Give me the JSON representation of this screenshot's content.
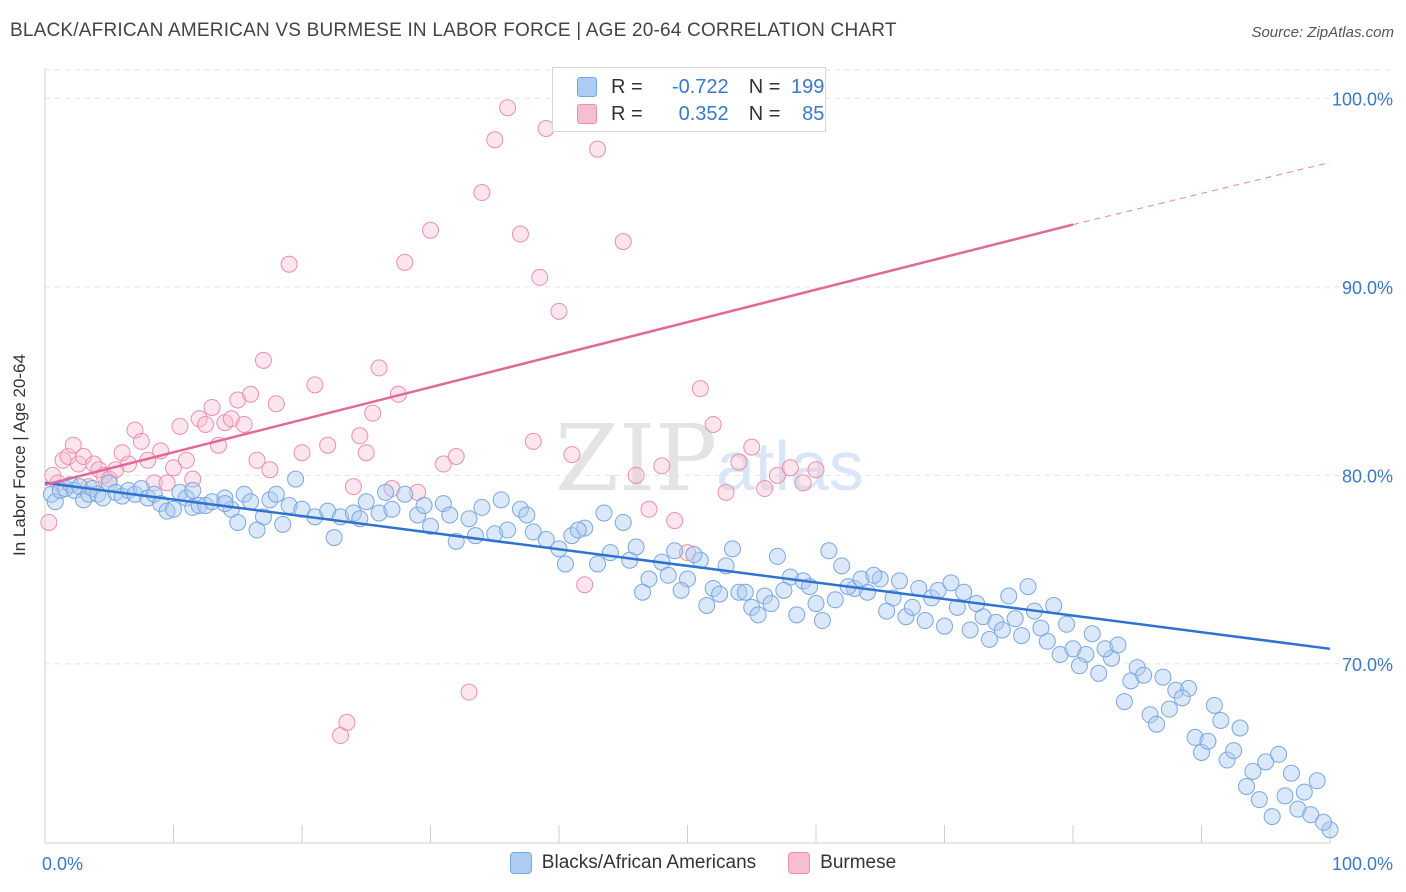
{
  "title": "BLACK/AFRICAN AMERICAN VS BURMESE IN LABOR FORCE | AGE 20-64 CORRELATION CHART",
  "source": "Source: ZipAtlas.com",
  "watermark": {
    "part1": "ZIP",
    "part2": "atlas"
  },
  "legend": {
    "rows": [
      {
        "r_label": "R =",
        "r_value": "-0.722",
        "n_label": "N =",
        "n_value": "199",
        "color": "#aecbf2",
        "border": "#7aa7e0"
      },
      {
        "r_label": "R =",
        "r_value": "0.352",
        "n_label": "N =",
        "n_value": "85",
        "color": "#f7bdd0",
        "border": "#ec8fae"
      }
    ]
  },
  "bottom_legend": [
    {
      "label": "Blacks/African Americans",
      "color": "#aecbf2",
      "border": "#7aa7e0"
    },
    {
      "label": "Burmese",
      "color": "#f7bdd0",
      "border": "#ec8fae"
    }
  ],
  "colors": {
    "blue_fill": "rgba(174,203,242,0.45)",
    "blue_stroke": "#7aa7e0",
    "blue_line": "#2f72cf",
    "pink_fill": "rgba(247,189,208,0.40)",
    "pink_stroke": "#ec8fae",
    "pink_line": "#e0699a",
    "tick_label": "#3a78c9"
  },
  "chart_data": {
    "type": "scatter",
    "title": "BLACK/AFRICAN AMERICAN VS BURMESE IN LABOR FORCE | AGE 20-64 CORRELATION CHART",
    "xlabel": "",
    "ylabel": "In Labor Force | Age 20-64",
    "x_tick_labels": [
      "0.0%",
      "100.0%"
    ],
    "y_tick_labels": [
      "70.0%",
      "80.0%",
      "90.0%",
      "100.0%"
    ],
    "y_ticks": [
      70,
      80,
      90,
      100
    ],
    "xlim": [
      0,
      100
    ],
    "ylim": [
      60.5,
      101.5
    ],
    "grid": true,
    "legend_position": "top-center",
    "series": [
      {
        "name": "Blacks/African Americans",
        "R": -0.722,
        "N": 199,
        "trend": {
          "x": [
            0,
            100
          ],
          "y": [
            79.6,
            70.8
          ]
        },
        "points": [
          [
            0.5,
            79.0
          ],
          [
            0.8,
            78.6
          ],
          [
            1.2,
            79.2
          ],
          [
            1.6,
            79.3
          ],
          [
            2.0,
            79.5
          ],
          [
            2.3,
            79.2
          ],
          [
            2.7,
            79.4
          ],
          [
            3.0,
            78.7
          ],
          [
            3.4,
            79.0
          ],
          [
            3.7,
            79.3
          ],
          [
            4.1,
            79.0
          ],
          [
            4.5,
            78.8
          ],
          [
            5.0,
            79.6
          ],
          [
            5.5,
            79.1
          ],
          [
            6.0,
            78.9
          ],
          [
            6.5,
            79.2
          ],
          [
            7.0,
            79.0
          ],
          [
            7.5,
            79.3
          ],
          [
            8.0,
            78.8
          ],
          [
            8.5,
            79.0
          ],
          [
            9.0,
            78.5
          ],
          [
            9.5,
            78.1
          ],
          [
            10.5,
            79.1
          ],
          [
            11.0,
            78.8
          ],
          [
            11.5,
            78.3
          ],
          [
            12.0,
            78.4
          ],
          [
            12.5,
            78.4
          ],
          [
            13.0,
            78.6
          ],
          [
            14.0,
            78.8
          ],
          [
            14.5,
            78.2
          ],
          [
            15.0,
            77.5
          ],
          [
            15.5,
            79.0
          ],
          [
            16.0,
            78.6
          ],
          [
            17.0,
            77.8
          ],
          [
            17.5,
            78.7
          ],
          [
            18.0,
            79.0
          ],
          [
            18.5,
            77.4
          ],
          [
            19.0,
            78.4
          ],
          [
            19.5,
            79.8
          ],
          [
            20.0,
            78.2
          ],
          [
            21.0,
            77.8
          ],
          [
            22.0,
            78.1
          ],
          [
            23.0,
            77.8
          ],
          [
            24.0,
            78.0
          ],
          [
            25.0,
            78.6
          ],
          [
            26.0,
            78.0
          ],
          [
            27.0,
            78.2
          ],
          [
            28.0,
            79.0
          ],
          [
            29.0,
            77.9
          ],
          [
            30.0,
            77.3
          ],
          [
            31.0,
            78.5
          ],
          [
            32.0,
            76.5
          ],
          [
            33.0,
            77.7
          ],
          [
            34.0,
            78.3
          ],
          [
            35.0,
            76.9
          ],
          [
            36.0,
            77.1
          ],
          [
            37.0,
            78.2
          ],
          [
            38.0,
            77.0
          ],
          [
            39.0,
            76.6
          ],
          [
            40.0,
            76.1
          ],
          [
            41.0,
            76.8
          ],
          [
            42.0,
            77.2
          ],
          [
            43.0,
            75.3
          ],
          [
            44.0,
            75.9
          ],
          [
            45.0,
            77.5
          ],
          [
            46.0,
            76.2
          ],
          [
            47.0,
            74.5
          ],
          [
            48.0,
            75.4
          ],
          [
            49.0,
            76.0
          ],
          [
            50.0,
            74.5
          ],
          [
            51.0,
            75.5
          ],
          [
            52.0,
            74.0
          ],
          [
            53.0,
            75.2
          ],
          [
            54.0,
            73.8
          ],
          [
            55.0,
            73.0
          ],
          [
            56.0,
            73.6
          ],
          [
            57.0,
            75.7
          ],
          [
            58.0,
            74.6
          ],
          [
            59.0,
            74.4
          ],
          [
            60.0,
            73.2
          ],
          [
            61.0,
            76.0
          ],
          [
            62.0,
            75.2
          ],
          [
            63.0,
            74.0
          ],
          [
            64.0,
            73.8
          ],
          [
            65.0,
            74.5
          ],
          [
            66.0,
            73.5
          ],
          [
            67.0,
            72.5
          ],
          [
            68.0,
            74.0
          ],
          [
            69.0,
            73.5
          ],
          [
            70.0,
            72.0
          ],
          [
            71.0,
            73.0
          ],
          [
            72.0,
            71.8
          ],
          [
            73.0,
            72.5
          ],
          [
            74.0,
            72.2
          ],
          [
            75.0,
            73.6
          ],
          [
            76.0,
            71.5
          ],
          [
            77.0,
            72.8
          ],
          [
            78.0,
            71.2
          ],
          [
            79.0,
            70.5
          ],
          [
            80.0,
            70.8
          ],
          [
            81.0,
            70.5
          ],
          [
            82.0,
            69.5
          ],
          [
            83.0,
            70.3
          ],
          [
            84.0,
            68.0
          ],
          [
            85.0,
            69.8
          ],
          [
            86.0,
            67.3
          ],
          [
            87.0,
            69.3
          ],
          [
            88.0,
            68.6
          ],
          [
            89.0,
            68.7
          ],
          [
            90.0,
            65.3
          ],
          [
            91.0,
            67.8
          ],
          [
            92.0,
            64.9
          ],
          [
            93.0,
            66.6
          ],
          [
            94.0,
            64.3
          ],
          [
            95.0,
            64.8
          ],
          [
            96.0,
            65.2
          ],
          [
            97.0,
            64.2
          ],
          [
            98.0,
            63.2
          ],
          [
            99.0,
            63.8
          ],
          [
            100.0,
            61.2
          ],
          [
            10.0,
            78.2
          ],
          [
            11.5,
            79.2
          ],
          [
            14.0,
            78.5
          ],
          [
            16.5,
            77.1
          ],
          [
            22.5,
            76.7
          ],
          [
            24.5,
            77.7
          ],
          [
            26.5,
            79.1
          ],
          [
            29.5,
            78.4
          ],
          [
            31.5,
            77.9
          ],
          [
            33.5,
            76.8
          ],
          [
            35.5,
            78.7
          ],
          [
            37.5,
            77.9
          ],
          [
            40.5,
            75.3
          ],
          [
            41.5,
            77.1
          ],
          [
            43.5,
            78.0
          ],
          [
            45.5,
            75.5
          ],
          [
            46.5,
            73.8
          ],
          [
            48.5,
            74.7
          ],
          [
            49.5,
            73.9
          ],
          [
            50.5,
            75.8
          ],
          [
            51.5,
            73.1
          ],
          [
            52.5,
            73.7
          ],
          [
            53.5,
            76.1
          ],
          [
            54.5,
            73.8
          ],
          [
            55.5,
            72.6
          ],
          [
            56.5,
            73.2
          ],
          [
            57.5,
            73.9
          ],
          [
            58.5,
            72.6
          ],
          [
            59.5,
            74.1
          ],
          [
            60.5,
            72.3
          ],
          [
            61.5,
            73.4
          ],
          [
            62.5,
            74.1
          ],
          [
            63.5,
            74.5
          ],
          [
            64.5,
            74.7
          ],
          [
            65.5,
            72.8
          ],
          [
            66.5,
            74.4
          ],
          [
            67.5,
            73.0
          ],
          [
            68.5,
            72.3
          ],
          [
            69.5,
            73.9
          ],
          [
            70.5,
            74.3
          ],
          [
            71.5,
            73.8
          ],
          [
            72.5,
            73.2
          ],
          [
            73.5,
            71.3
          ],
          [
            74.5,
            71.8
          ],
          [
            75.5,
            72.4
          ],
          [
            76.5,
            74.1
          ],
          [
            77.5,
            71.9
          ],
          [
            78.5,
            73.1
          ],
          [
            79.5,
            72.1
          ],
          [
            80.5,
            69.9
          ],
          [
            81.5,
            71.6
          ],
          [
            82.5,
            70.8
          ],
          [
            83.5,
            71.0
          ],
          [
            84.5,
            69.1
          ],
          [
            85.5,
            69.4
          ],
          [
            86.5,
            66.8
          ],
          [
            87.5,
            67.6
          ],
          [
            88.5,
            68.2
          ],
          [
            89.5,
            66.1
          ],
          [
            90.5,
            65.9
          ],
          [
            91.5,
            67.0
          ],
          [
            92.5,
            65.4
          ],
          [
            93.5,
            63.5
          ],
          [
            94.5,
            62.8
          ],
          [
            95.5,
            61.9
          ],
          [
            96.5,
            63.0
          ],
          [
            97.5,
            62.3
          ],
          [
            98.5,
            62.0
          ],
          [
            99.5,
            61.6
          ]
        ]
      },
      {
        "name": "Burmese",
        "R": 0.352,
        "N": 85,
        "trend": {
          "x": [
            0,
            80
          ],
          "y": [
            79.5,
            93.3
          ],
          "dashed_to": [
            100,
            96.6
          ]
        },
        "points": [
          [
            0.3,
            77.5
          ],
          [
            0.6,
            80.0
          ],
          [
            1.0,
            79.6
          ],
          [
            1.4,
            80.8
          ],
          [
            1.8,
            81.0
          ],
          [
            2.2,
            81.6
          ],
          [
            2.6,
            80.6
          ],
          [
            3.0,
            81.0
          ],
          [
            3.4,
            79.4
          ],
          [
            3.8,
            80.6
          ],
          [
            4.2,
            80.3
          ],
          [
            4.6,
            80.0
          ],
          [
            5.0,
            79.8
          ],
          [
            5.5,
            80.3
          ],
          [
            6.0,
            81.2
          ],
          [
            6.5,
            80.6
          ],
          [
            7.0,
            82.4
          ],
          [
            7.5,
            81.8
          ],
          [
            8.0,
            80.8
          ],
          [
            8.5,
            79.6
          ],
          [
            9.0,
            81.3
          ],
          [
            9.5,
            79.6
          ],
          [
            10.0,
            80.4
          ],
          [
            10.5,
            82.6
          ],
          [
            11.0,
            80.8
          ],
          [
            11.5,
            79.8
          ],
          [
            12.0,
            83.0
          ],
          [
            12.5,
            82.7
          ],
          [
            13.0,
            83.6
          ],
          [
            13.5,
            81.6
          ],
          [
            14.0,
            82.8
          ],
          [
            14.5,
            83.0
          ],
          [
            15.0,
            84.0
          ],
          [
            15.5,
            82.7
          ],
          [
            16.0,
            84.3
          ],
          [
            16.5,
            80.8
          ],
          [
            17.0,
            86.1
          ],
          [
            17.5,
            80.3
          ],
          [
            18.0,
            83.8
          ],
          [
            19.0,
            91.2
          ],
          [
            20.0,
            81.2
          ],
          [
            21.0,
            84.8
          ],
          [
            22.0,
            81.6
          ],
          [
            23.0,
            66.2
          ],
          [
            23.5,
            66.9
          ],
          [
            24.0,
            79.4
          ],
          [
            24.5,
            82.1
          ],
          [
            25.0,
            81.2
          ],
          [
            25.5,
            83.3
          ],
          [
            26.0,
            85.7
          ],
          [
            27.0,
            79.3
          ],
          [
            27.5,
            84.3
          ],
          [
            28.0,
            91.3
          ],
          [
            29.0,
            79.1
          ],
          [
            30.0,
            93.0
          ],
          [
            31.0,
            80.6
          ],
          [
            32.0,
            81.0
          ],
          [
            33.0,
            68.5
          ],
          [
            34.0,
            95.0
          ],
          [
            35.0,
            97.8
          ],
          [
            36.0,
            99.5
          ],
          [
            37.0,
            92.8
          ],
          [
            38.0,
            81.8
          ],
          [
            38.5,
            90.5
          ],
          [
            39.0,
            98.4
          ],
          [
            40.0,
            88.7
          ],
          [
            41.0,
            81.1
          ],
          [
            42.0,
            74.2
          ],
          [
            43.0,
            97.3
          ],
          [
            44.0,
            100.0
          ],
          [
            45.0,
            92.4
          ],
          [
            46.0,
            80.0
          ],
          [
            47.0,
            78.2
          ],
          [
            48.0,
            80.5
          ],
          [
            49.0,
            77.6
          ],
          [
            50.0,
            75.9
          ],
          [
            51.0,
            84.6
          ],
          [
            52.0,
            82.7
          ],
          [
            53.0,
            79.1
          ],
          [
            54.0,
            80.7
          ],
          [
            55.0,
            81.5
          ],
          [
            56.0,
            79.3
          ],
          [
            57.0,
            80.0
          ],
          [
            58.0,
            80.4
          ],
          [
            59.0,
            79.6
          ],
          [
            60.0,
            80.3
          ]
        ]
      }
    ]
  }
}
